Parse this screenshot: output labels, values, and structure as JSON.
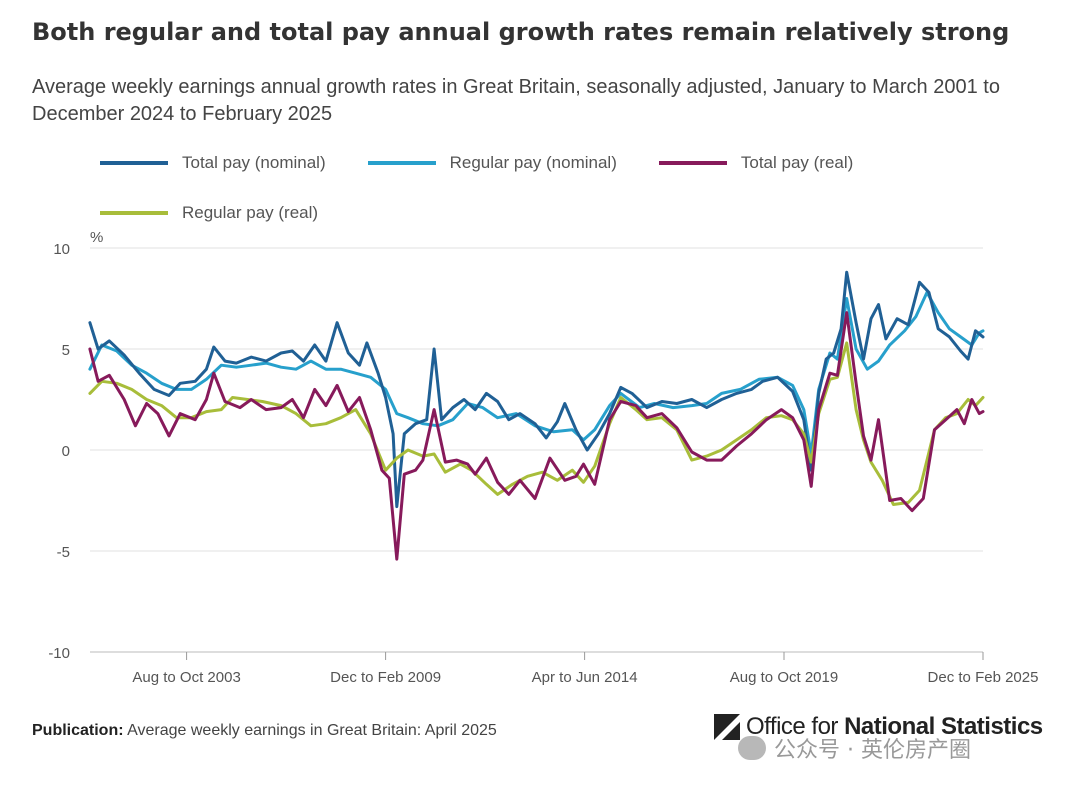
{
  "title": "Both regular and total pay annual growth rates remain relatively strong",
  "subtitle": "Average weekly earnings annual growth rates in Great Britain, seasonally adjusted, January to March 2001 to December 2024 to February 2025",
  "footer": {
    "label": "Publication:",
    "text": "Average weekly earnings in Great Britain: April 2025"
  },
  "logo": {
    "prefix": "Office for ",
    "bold": "National Statistics"
  },
  "watermark": "公众号 · 英伦房产圈",
  "chart_data": {
    "type": "line",
    "ylabel": "%",
    "ylim": [
      -10,
      10
    ],
    "yticks": [
      10,
      5,
      0,
      -5,
      -10
    ],
    "xlim": [
      2001.083,
      2025.0
    ],
    "xticks": [
      {
        "x": 2003.67,
        "label": "Aug to Oct 2003"
      },
      {
        "x": 2009.0,
        "label": "Dec to Feb 2009"
      },
      {
        "x": 2014.33,
        "label": "Apr to Jun 2014"
      },
      {
        "x": 2019.67,
        "label": "Aug to Oct 2019"
      },
      {
        "x": 2025.0,
        "label": "Dec to Feb 2025"
      }
    ],
    "grid": true,
    "legend_position": "top-left",
    "series": [
      {
        "name": "Total pay (nominal)",
        "color": "#206095",
        "points": [
          [
            2001.08,
            6.3
          ],
          [
            2001.3,
            5.0
          ],
          [
            2001.6,
            5.4
          ],
          [
            2002.0,
            4.7
          ],
          [
            2002.4,
            3.8
          ],
          [
            2002.8,
            3.0
          ],
          [
            2003.2,
            2.7
          ],
          [
            2003.5,
            3.3
          ],
          [
            2003.9,
            3.4
          ],
          [
            2004.2,
            4.0
          ],
          [
            2004.4,
            5.1
          ],
          [
            2004.7,
            4.4
          ],
          [
            2005.0,
            4.3
          ],
          [
            2005.4,
            4.6
          ],
          [
            2005.8,
            4.4
          ],
          [
            2006.2,
            4.8
          ],
          [
            2006.5,
            4.9
          ],
          [
            2006.8,
            4.4
          ],
          [
            2007.1,
            5.2
          ],
          [
            2007.4,
            4.4
          ],
          [
            2007.7,
            6.3
          ],
          [
            2008.0,
            4.8
          ],
          [
            2008.3,
            4.2
          ],
          [
            2008.5,
            5.3
          ],
          [
            2008.8,
            3.8
          ],
          [
            2009.0,
            2.6
          ],
          [
            2009.2,
            0.8
          ],
          [
            2009.3,
            -2.8
          ],
          [
            2009.5,
            0.8
          ],
          [
            2009.8,
            1.3
          ],
          [
            2010.1,
            1.5
          ],
          [
            2010.3,
            5.0
          ],
          [
            2010.5,
            1.5
          ],
          [
            2010.8,
            2.1
          ],
          [
            2011.1,
            2.5
          ],
          [
            2011.4,
            2.0
          ],
          [
            2011.7,
            2.8
          ],
          [
            2012.0,
            2.4
          ],
          [
            2012.3,
            1.5
          ],
          [
            2012.6,
            1.8
          ],
          [
            2013.0,
            1.3
          ],
          [
            2013.3,
            0.6
          ],
          [
            2013.6,
            1.4
          ],
          [
            2013.8,
            2.3
          ],
          [
            2014.1,
            1.0
          ],
          [
            2014.4,
            0.0
          ],
          [
            2014.7,
            0.8
          ],
          [
            2015.0,
            1.8
          ],
          [
            2015.3,
            3.1
          ],
          [
            2015.6,
            2.8
          ],
          [
            2016.0,
            2.1
          ],
          [
            2016.4,
            2.4
          ],
          [
            2016.8,
            2.3
          ],
          [
            2017.2,
            2.5
          ],
          [
            2017.6,
            2.1
          ],
          [
            2018.0,
            2.5
          ],
          [
            2018.4,
            2.8
          ],
          [
            2018.8,
            3.0
          ],
          [
            2019.1,
            3.4
          ],
          [
            2019.5,
            3.6
          ],
          [
            2019.9,
            2.9
          ],
          [
            2020.2,
            1.5
          ],
          [
            2020.4,
            -1.0
          ],
          [
            2020.6,
            2.8
          ],
          [
            2020.8,
            4.5
          ],
          [
            2021.0,
            4.8
          ],
          [
            2021.2,
            6.0
          ],
          [
            2021.35,
            8.8
          ],
          [
            2021.6,
            6.3
          ],
          [
            2021.8,
            4.5
          ],
          [
            2022.0,
            6.5
          ],
          [
            2022.2,
            7.2
          ],
          [
            2022.4,
            5.5
          ],
          [
            2022.7,
            6.5
          ],
          [
            2023.0,
            6.2
          ],
          [
            2023.3,
            8.3
          ],
          [
            2023.55,
            7.8
          ],
          [
            2023.8,
            6.0
          ],
          [
            2024.1,
            5.6
          ],
          [
            2024.4,
            4.9
          ],
          [
            2024.6,
            4.5
          ],
          [
            2024.8,
            5.9
          ],
          [
            2025.0,
            5.6
          ]
        ]
      },
      {
        "name": "Regular pay (nominal)",
        "color": "#27a0cc",
        "points": [
          [
            2001.08,
            4.0
          ],
          [
            2001.4,
            5.2
          ],
          [
            2001.8,
            4.9
          ],
          [
            2002.2,
            4.2
          ],
          [
            2002.6,
            3.8
          ],
          [
            2003.0,
            3.3
          ],
          [
            2003.4,
            3.0
          ],
          [
            2003.8,
            3.0
          ],
          [
            2004.2,
            3.5
          ],
          [
            2004.6,
            4.2
          ],
          [
            2005.0,
            4.1
          ],
          [
            2005.4,
            4.2
          ],
          [
            2005.8,
            4.3
          ],
          [
            2006.2,
            4.1
          ],
          [
            2006.6,
            4.0
          ],
          [
            2007.0,
            4.4
          ],
          [
            2007.4,
            4.0
          ],
          [
            2007.8,
            4.0
          ],
          [
            2008.2,
            3.8
          ],
          [
            2008.6,
            3.6
          ],
          [
            2009.0,
            3.0
          ],
          [
            2009.3,
            1.8
          ],
          [
            2009.6,
            1.6
          ],
          [
            2010.0,
            1.3
          ],
          [
            2010.4,
            1.2
          ],
          [
            2010.8,
            1.5
          ],
          [
            2011.2,
            2.3
          ],
          [
            2011.6,
            2.1
          ],
          [
            2012.0,
            1.6
          ],
          [
            2012.5,
            1.8
          ],
          [
            2013.0,
            1.2
          ],
          [
            2013.5,
            0.9
          ],
          [
            2014.0,
            1.0
          ],
          [
            2014.3,
            0.5
          ],
          [
            2014.6,
            1.0
          ],
          [
            2015.0,
            2.2
          ],
          [
            2015.3,
            2.8
          ],
          [
            2015.8,
            2.1
          ],
          [
            2016.2,
            2.3
          ],
          [
            2016.7,
            2.1
          ],
          [
            2017.2,
            2.2
          ],
          [
            2017.6,
            2.3
          ],
          [
            2018.0,
            2.8
          ],
          [
            2018.5,
            3.0
          ],
          [
            2019.0,
            3.5
          ],
          [
            2019.5,
            3.6
          ],
          [
            2019.9,
            3.2
          ],
          [
            2020.2,
            2.0
          ],
          [
            2020.4,
            -0.2
          ],
          [
            2020.6,
            3.0
          ],
          [
            2020.9,
            4.8
          ],
          [
            2021.1,
            4.5
          ],
          [
            2021.35,
            7.5
          ],
          [
            2021.6,
            5.0
          ],
          [
            2021.9,
            4.0
          ],
          [
            2022.2,
            4.4
          ],
          [
            2022.5,
            5.2
          ],
          [
            2022.9,
            5.9
          ],
          [
            2023.2,
            6.6
          ],
          [
            2023.5,
            7.8
          ],
          [
            2023.8,
            6.8
          ],
          [
            2024.1,
            6.0
          ],
          [
            2024.4,
            5.6
          ],
          [
            2024.7,
            5.2
          ],
          [
            2024.9,
            5.8
          ],
          [
            2025.0,
            5.9
          ]
        ]
      },
      {
        "name": "Total pay (real)",
        "color": "#871a5b",
        "points": [
          [
            2001.08,
            5.0
          ],
          [
            2001.3,
            3.4
          ],
          [
            2001.6,
            3.7
          ],
          [
            2002.0,
            2.5
          ],
          [
            2002.3,
            1.2
          ],
          [
            2002.6,
            2.3
          ],
          [
            2002.9,
            1.8
          ],
          [
            2003.2,
            0.7
          ],
          [
            2003.5,
            1.8
          ],
          [
            2003.9,
            1.5
          ],
          [
            2004.2,
            2.5
          ],
          [
            2004.4,
            3.8
          ],
          [
            2004.7,
            2.4
          ],
          [
            2005.1,
            2.1
          ],
          [
            2005.4,
            2.5
          ],
          [
            2005.8,
            2.0
          ],
          [
            2006.2,
            2.1
          ],
          [
            2006.5,
            2.5
          ],
          [
            2006.8,
            1.6
          ],
          [
            2007.1,
            3.0
          ],
          [
            2007.4,
            2.2
          ],
          [
            2007.7,
            3.2
          ],
          [
            2008.0,
            1.9
          ],
          [
            2008.3,
            2.6
          ],
          [
            2008.6,
            1.0
          ],
          [
            2008.9,
            -1.0
          ],
          [
            2009.1,
            -1.4
          ],
          [
            2009.3,
            -5.4
          ],
          [
            2009.5,
            -1.2
          ],
          [
            2009.8,
            -1.0
          ],
          [
            2010.0,
            -0.5
          ],
          [
            2010.3,
            2.0
          ],
          [
            2010.6,
            -0.6
          ],
          [
            2010.9,
            -0.5
          ],
          [
            2011.2,
            -0.7
          ],
          [
            2011.4,
            -1.2
          ],
          [
            2011.7,
            -0.4
          ],
          [
            2012.0,
            -1.6
          ],
          [
            2012.3,
            -2.2
          ],
          [
            2012.6,
            -1.5
          ],
          [
            2013.0,
            -2.4
          ],
          [
            2013.4,
            -0.4
          ],
          [
            2013.8,
            -1.5
          ],
          [
            2014.1,
            -1.3
          ],
          [
            2014.3,
            -0.7
          ],
          [
            2014.6,
            -1.7
          ],
          [
            2015.0,
            1.5
          ],
          [
            2015.3,
            2.4
          ],
          [
            2015.7,
            2.2
          ],
          [
            2016.0,
            1.6
          ],
          [
            2016.4,
            1.8
          ],
          [
            2016.8,
            1.1
          ],
          [
            2017.2,
            -0.1
          ],
          [
            2017.6,
            -0.5
          ],
          [
            2018.0,
            -0.5
          ],
          [
            2018.4,
            0.2
          ],
          [
            2018.8,
            0.8
          ],
          [
            2019.2,
            1.5
          ],
          [
            2019.6,
            2.0
          ],
          [
            2019.9,
            1.6
          ],
          [
            2020.2,
            0.5
          ],
          [
            2020.4,
            -1.8
          ],
          [
            2020.6,
            2.0
          ],
          [
            2020.9,
            3.8
          ],
          [
            2021.1,
            3.7
          ],
          [
            2021.35,
            6.8
          ],
          [
            2021.6,
            3.3
          ],
          [
            2021.8,
            0.7
          ],
          [
            2022.0,
            -0.5
          ],
          [
            2022.2,
            1.5
          ],
          [
            2022.5,
            -2.5
          ],
          [
            2022.8,
            -2.4
          ],
          [
            2023.1,
            -3.0
          ],
          [
            2023.4,
            -2.4
          ],
          [
            2023.7,
            1.0
          ],
          [
            2024.0,
            1.5
          ],
          [
            2024.3,
            2.0
          ],
          [
            2024.5,
            1.3
          ],
          [
            2024.7,
            2.5
          ],
          [
            2024.9,
            1.8
          ],
          [
            2025.0,
            1.9
          ]
        ]
      },
      {
        "name": "Regular pay (real)",
        "color": "#a8bd3a",
        "points": [
          [
            2001.08,
            2.8
          ],
          [
            2001.4,
            3.4
          ],
          [
            2001.8,
            3.3
          ],
          [
            2002.2,
            3.0
          ],
          [
            2002.6,
            2.5
          ],
          [
            2003.0,
            2.2
          ],
          [
            2003.4,
            1.6
          ],
          [
            2003.8,
            1.6
          ],
          [
            2004.2,
            1.9
          ],
          [
            2004.6,
            2.0
          ],
          [
            2004.9,
            2.6
          ],
          [
            2005.3,
            2.5
          ],
          [
            2005.7,
            2.4
          ],
          [
            2006.2,
            2.2
          ],
          [
            2006.6,
            1.8
          ],
          [
            2007.0,
            1.2
          ],
          [
            2007.4,
            1.3
          ],
          [
            2007.8,
            1.6
          ],
          [
            2008.2,
            2.0
          ],
          [
            2008.6,
            0.8
          ],
          [
            2009.0,
            -1.0
          ],
          [
            2009.3,
            -0.4
          ],
          [
            2009.6,
            0.0
          ],
          [
            2010.0,
            -0.3
          ],
          [
            2010.3,
            -0.2
          ],
          [
            2010.6,
            -1.1
          ],
          [
            2011.0,
            -0.7
          ],
          [
            2011.3,
            -1.0
          ],
          [
            2011.7,
            -1.7
          ],
          [
            2012.0,
            -2.2
          ],
          [
            2012.4,
            -1.7
          ],
          [
            2012.8,
            -1.3
          ],
          [
            2013.2,
            -1.1
          ],
          [
            2013.6,
            -1.5
          ],
          [
            2014.0,
            -1.0
          ],
          [
            2014.3,
            -1.6
          ],
          [
            2014.6,
            -0.8
          ],
          [
            2015.0,
            1.3
          ],
          [
            2015.3,
            2.6
          ],
          [
            2015.7,
            2.0
          ],
          [
            2016.0,
            1.5
          ],
          [
            2016.4,
            1.6
          ],
          [
            2016.8,
            1.0
          ],
          [
            2017.2,
            -0.5
          ],
          [
            2017.6,
            -0.3
          ],
          [
            2018.0,
            0.0
          ],
          [
            2018.4,
            0.5
          ],
          [
            2018.8,
            1.0
          ],
          [
            2019.2,
            1.6
          ],
          [
            2019.6,
            1.7
          ],
          [
            2019.9,
            1.5
          ],
          [
            2020.2,
            0.8
          ],
          [
            2020.4,
            -0.6
          ],
          [
            2020.6,
            1.8
          ],
          [
            2020.9,
            3.5
          ],
          [
            2021.1,
            3.6
          ],
          [
            2021.35,
            5.3
          ],
          [
            2021.6,
            2.0
          ],
          [
            2021.8,
            0.5
          ],
          [
            2022.0,
            -0.6
          ],
          [
            2022.3,
            -1.5
          ],
          [
            2022.6,
            -2.7
          ],
          [
            2023.0,
            -2.6
          ],
          [
            2023.3,
            -2.0
          ],
          [
            2023.7,
            1.0
          ],
          [
            2024.0,
            1.6
          ],
          [
            2024.3,
            1.8
          ],
          [
            2024.6,
            2.5
          ],
          [
            2024.8,
            2.2
          ],
          [
            2025.0,
            2.6
          ]
        ]
      }
    ]
  }
}
